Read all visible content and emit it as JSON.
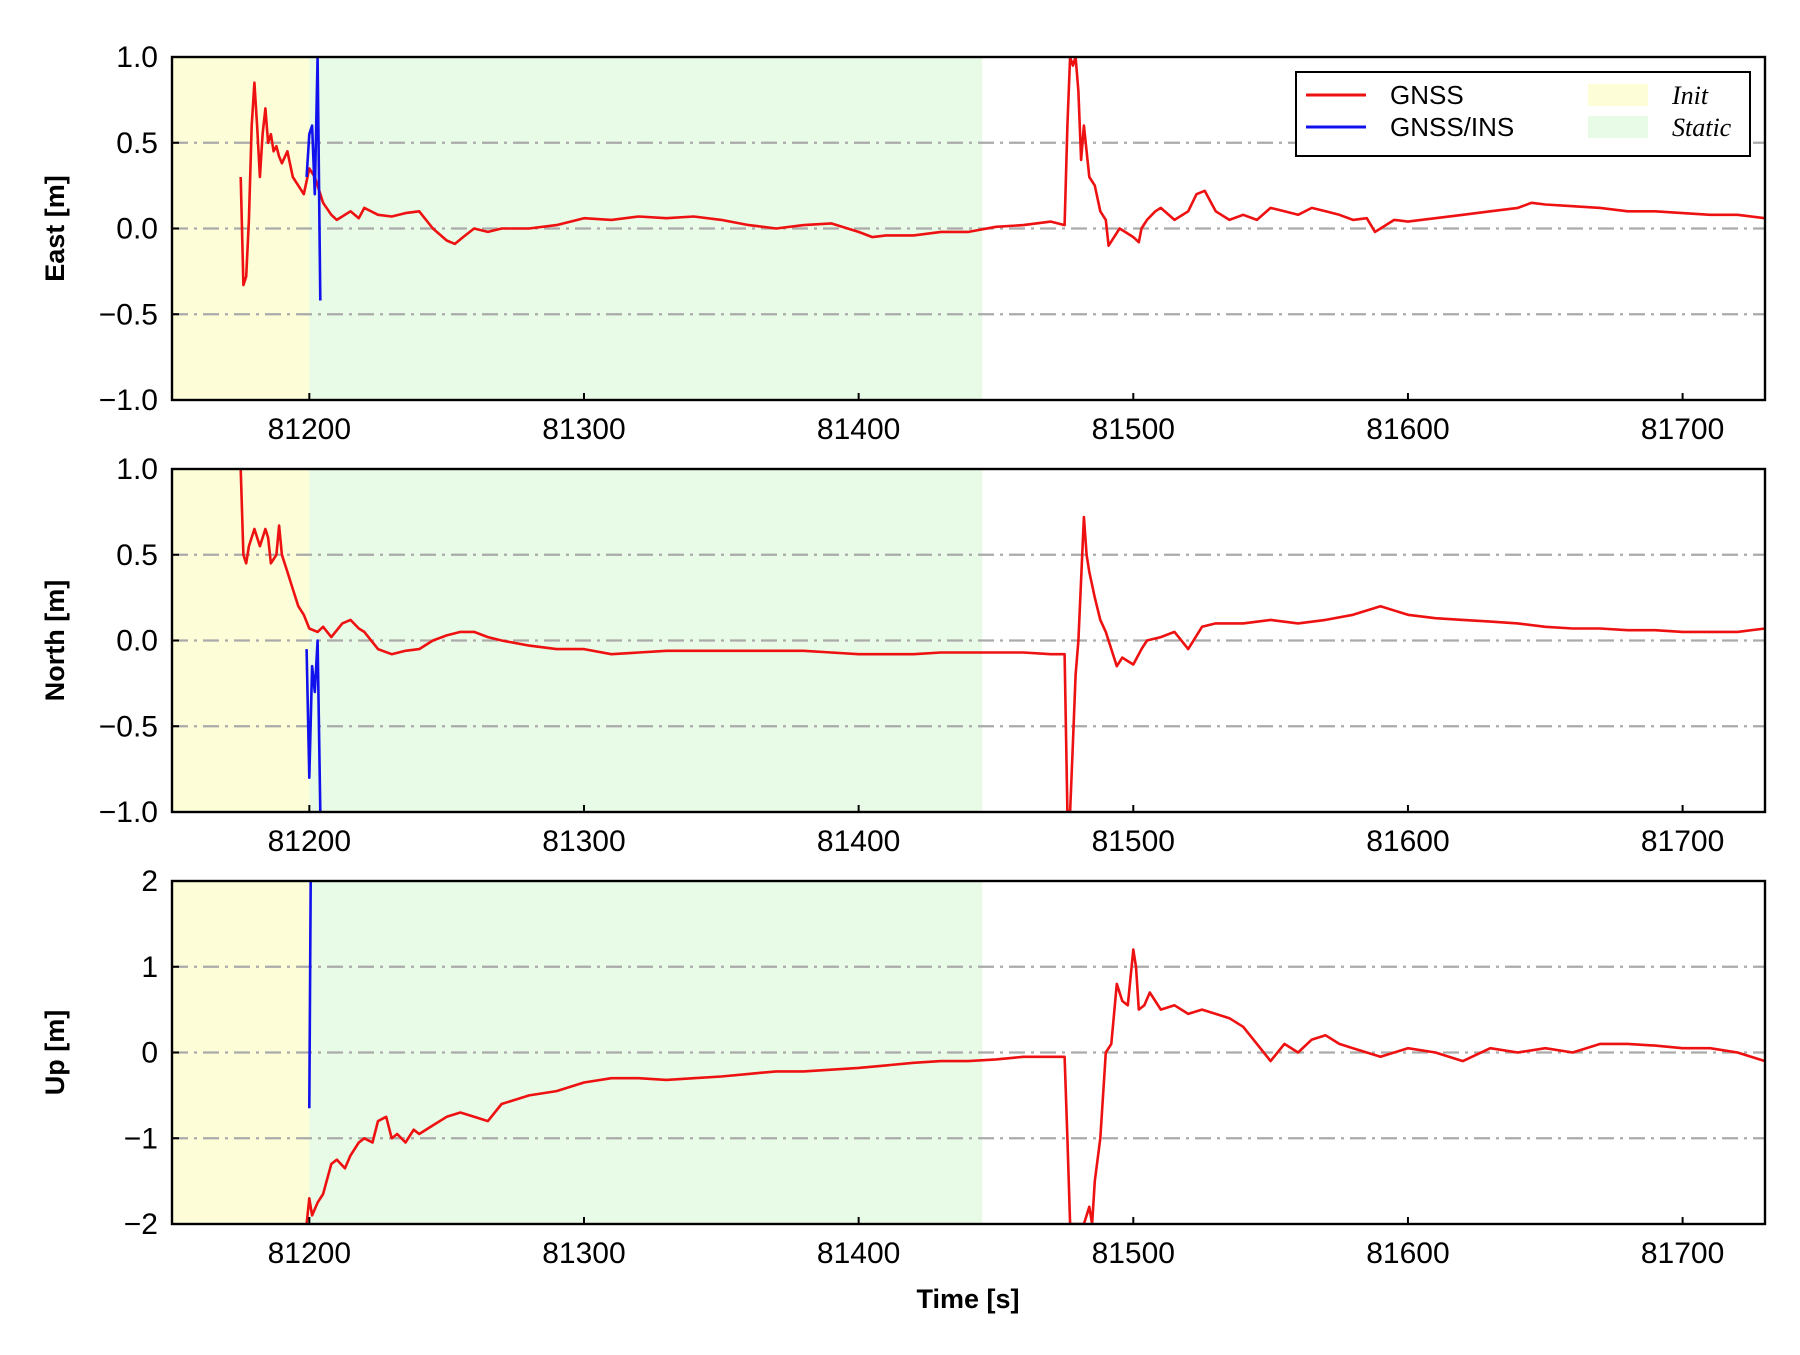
{
  "chart_data": {
    "type": "line",
    "xlabel": "Time [s]",
    "xlim": [
      81150,
      81730
    ],
    "xticks": [
      81200,
      81300,
      81400,
      81500,
      81600,
      81700
    ],
    "xtick_labels": [
      "81200",
      "81300",
      "81400",
      "81500",
      "81600",
      "81700"
    ],
    "shaded_regions": [
      {
        "name": "Init",
        "x_range": [
          81150,
          81200
        ],
        "color": "#fdfdd8"
      },
      {
        "name": "Static",
        "x_range": [
          81200,
          81445
        ],
        "color": "#e8fbe6"
      }
    ],
    "legend": {
      "placement": "top-right",
      "entries": [
        {
          "label": "GNSS",
          "type": "line",
          "color": "#ee1111"
        },
        {
          "label": "GNSS/INS",
          "type": "line",
          "color": "#1111ee"
        },
        {
          "label": "Init",
          "type": "patch",
          "color": "#fdfdd8"
        },
        {
          "label": "Static",
          "type": "patch",
          "color": "#e8fbe6"
        }
      ]
    },
    "grid": "horizontal dash-dot",
    "panels": [
      {
        "ylabel": "East [m]",
        "ylim": [
          -1.0,
          1.0
        ],
        "yticks": [
          -1.0,
          -0.5,
          0.0,
          0.5,
          1.0
        ],
        "ytick_labels": [
          "−1.0",
          "−0.5",
          "0.0",
          "0.5",
          "1.0"
        ],
        "series": [
          {
            "name": "GNSS",
            "color": "#ee1111",
            "x": [
              81175,
              81176,
              81177,
              81178,
              81179,
              81180,
              81181,
              81182,
              81183,
              81184,
              81185,
              81186,
              81187,
              81188,
              81189,
              81190,
              81192,
              81194,
              81196,
              81198,
              81200,
              81202,
              81205,
              81208,
              81210,
              81215,
              81218,
              81220,
              81225,
              81230,
              81235,
              81240,
              81245,
              81250,
              81253,
              81256,
              81260,
              81265,
              81270,
              81280,
              81290,
              81300,
              81310,
              81320,
              81330,
              81340,
              81350,
              81360,
              81370,
              81380,
              81390,
              81400,
              81405,
              81410,
              81420,
              81430,
              81440,
              81450,
              81460,
              81470,
              81475,
              81476,
              81477,
              81478,
              81479,
              81480,
              81481,
              81482,
              81484,
              81486,
              81488,
              81490,
              81491,
              81493,
              81495,
              81497,
              81500,
              81502,
              81503,
              81505,
              81508,
              81510,
              81515,
              81520,
              81523,
              81526,
              81530,
              81535,
              81540,
              81545,
              81550,
              81555,
              81560,
              81565,
              81570,
              81575,
              81580,
              81585,
              81588,
              81590,
              81595,
              81600,
              81610,
              81620,
              81630,
              81640,
              81645,
              81650,
              81660,
              81670,
              81680,
              81690,
              81700,
              81710,
              81720,
              81730
            ],
            "y": [
              0.3,
              -0.33,
              -0.28,
              0.05,
              0.6,
              0.85,
              0.6,
              0.3,
              0.55,
              0.7,
              0.5,
              0.55,
              0.45,
              0.48,
              0.42,
              0.38,
              0.45,
              0.3,
              0.25,
              0.2,
              0.35,
              0.3,
              0.15,
              0.08,
              0.05,
              0.1,
              0.06,
              0.12,
              0.08,
              0.07,
              0.09,
              0.1,
              0.0,
              -0.07,
              -0.09,
              -0.05,
              0.0,
              -0.02,
              0.0,
              0.0,
              0.02,
              0.06,
              0.05,
              0.07,
              0.06,
              0.07,
              0.05,
              0.02,
              0.0,
              0.02,
              0.03,
              -0.02,
              -0.05,
              -0.04,
              -0.04,
              -0.02,
              -0.02,
              0.01,
              0.02,
              0.04,
              0.02,
              0.6,
              1.0,
              0.95,
              1.0,
              0.8,
              0.4,
              0.6,
              0.3,
              0.25,
              0.1,
              0.05,
              -0.1,
              -0.05,
              0.0,
              -0.02,
              -0.05,
              -0.08,
              0.0,
              0.05,
              0.1,
              0.12,
              0.05,
              0.1,
              0.2,
              0.22,
              0.1,
              0.05,
              0.08,
              0.05,
              0.12,
              0.1,
              0.08,
              0.12,
              0.1,
              0.08,
              0.05,
              0.06,
              -0.02,
              0.0,
              0.05,
              0.04,
              0.06,
              0.08,
              0.1,
              0.12,
              0.15,
              0.14,
              0.13,
              0.12,
              0.1,
              0.1,
              0.09,
              0.08,
              0.08,
              0.06
            ]
          },
          {
            "name": "GNSS/INS",
            "color": "#1111ee",
            "x": [
              81199,
              81200,
              81201,
              81202,
              81203,
              81204
            ],
            "y": [
              0.3,
              0.55,
              0.6,
              0.2,
              1.0,
              -0.42
            ]
          }
        ]
      },
      {
        "ylabel": "North [m]",
        "ylim": [
          -1.0,
          1.0
        ],
        "yticks": [
          -1.0,
          -0.5,
          0.0,
          0.5,
          1.0
        ],
        "ytick_labels": [
          "−1.0",
          "−0.5",
          "0.0",
          "0.5",
          "1.0"
        ],
        "series": [
          {
            "name": "GNSS",
            "color": "#ee1111",
            "x": [
              81175,
              81176,
              81177,
              81178,
              81180,
              81182,
              81184,
              81185,
              81186,
              81188,
              81189,
              81190,
              81192,
              81194,
              81196,
              81198,
              81200,
              81203,
              81205,
              81208,
              81212,
              81215,
              81218,
              81220,
              81225,
              81230,
              81235,
              81240,
              81245,
              81250,
              81255,
              81260,
              81265,
              81270,
              81280,
              81290,
              81300,
              81310,
              81320,
              81330,
              81340,
              81350,
              81360,
              81370,
              81380,
              81390,
              81400,
              81410,
              81420,
              81430,
              81440,
              81450,
              81460,
              81470,
              81475,
              81476,
              81477,
              81478,
              81479,
              81480,
              81482,
              81483,
              81484,
              81486,
              81488,
              81490,
              81492,
              81494,
              81496,
              81498,
              81500,
              81503,
              81505,
              81510,
              81515,
              81520,
              81525,
              81530,
              81540,
              81550,
              81560,
              81570,
              81580,
              81590,
              81600,
              81610,
              81620,
              81630,
              81640,
              81650,
              81660,
              81670,
              81680,
              81690,
              81700,
              81710,
              81720,
              81730
            ],
            "y": [
              1.0,
              0.5,
              0.45,
              0.55,
              0.65,
              0.55,
              0.65,
              0.6,
              0.45,
              0.5,
              0.67,
              0.5,
              0.4,
              0.3,
              0.2,
              0.15,
              0.07,
              0.05,
              0.08,
              0.02,
              0.1,
              0.12,
              0.07,
              0.05,
              -0.05,
              -0.08,
              -0.06,
              -0.05,
              0.0,
              0.03,
              0.05,
              0.05,
              0.02,
              0.0,
              -0.03,
              -0.05,
              -0.05,
              -0.08,
              -0.07,
              -0.06,
              -0.06,
              -0.06,
              -0.06,
              -0.06,
              -0.06,
              -0.07,
              -0.08,
              -0.08,
              -0.08,
              -0.07,
              -0.07,
              -0.07,
              -0.07,
              -0.08,
              -0.08,
              -1.0,
              -1.0,
              -0.6,
              -0.2,
              0.0,
              0.72,
              0.5,
              0.4,
              0.25,
              0.12,
              0.05,
              -0.05,
              -0.15,
              -0.1,
              -0.12,
              -0.14,
              -0.05,
              0.0,
              0.02,
              0.05,
              -0.05,
              0.08,
              0.1,
              0.1,
              0.12,
              0.1,
              0.12,
              0.15,
              0.2,
              0.15,
              0.13,
              0.12,
              0.11,
              0.1,
              0.08,
              0.07,
              0.07,
              0.06,
              0.06,
              0.05,
              0.05,
              0.05,
              0.07
            ]
          },
          {
            "name": "GNSS/INS",
            "color": "#1111ee",
            "x": [
              81199,
              81200,
              81201,
              81202,
              81203,
              81204
            ],
            "y": [
              -0.05,
              -0.8,
              -0.15,
              -0.3,
              0.0,
              -1.0
            ]
          }
        ]
      },
      {
        "ylabel": "Up [m]",
        "ylim": [
          -2,
          2
        ],
        "yticks": [
          -2,
          -1,
          0,
          1,
          2
        ],
        "ytick_labels": [
          "−2",
          "−1",
          "0",
          "1",
          "2"
        ],
        "series": [
          {
            "name": "GNSS",
            "color": "#ee1111",
            "x": [
              81199,
              81200,
              81201,
              81203,
              81205,
              81208,
              81210,
              81213,
              81215,
              81218,
              81220,
              81223,
              81225,
              81228,
              81230,
              81232,
              81235,
              81238,
              81240,
              81245,
              81250,
              81255,
              81260,
              81265,
              81270,
              81275,
              81280,
              81290,
              81300,
              81310,
              81320,
              81330,
              81340,
              81350,
              81360,
              81370,
              81380,
              81390,
              81400,
              81410,
              81420,
              81430,
              81440,
              81450,
              81460,
              81470,
              81475,
              81476,
              81477,
              81478,
              81480,
              81482,
              81484,
              81485,
              81486,
              81488,
              81490,
              81492,
              81494,
              81496,
              81498,
              81500,
              81501,
              81502,
              81504,
              81506,
              81508,
              81510,
              81515,
              81520,
              81525,
              81530,
              81535,
              81540,
              81545,
              81550,
              81555,
              81560,
              81565,
              81570,
              81575,
              81580,
              81590,
              81600,
              81610,
              81620,
              81630,
              81640,
              81650,
              81660,
              81670,
              81680,
              81690,
              81700,
              81710,
              81720,
              81730
            ],
            "y": [
              -2.0,
              -1.7,
              -1.9,
              -1.75,
              -1.65,
              -1.3,
              -1.25,
              -1.35,
              -1.2,
              -1.05,
              -1.0,
              -1.05,
              -0.8,
              -0.75,
              -1.0,
              -0.95,
              -1.05,
              -0.9,
              -0.95,
              -0.85,
              -0.75,
              -0.7,
              -0.75,
              -0.8,
              -0.6,
              -0.55,
              -0.5,
              -0.45,
              -0.35,
              -0.3,
              -0.3,
              -0.32,
              -0.3,
              -0.28,
              -0.25,
              -0.22,
              -0.22,
              -0.2,
              -0.18,
              -0.15,
              -0.12,
              -0.1,
              -0.1,
              -0.08,
              -0.05,
              -0.05,
              -0.05,
              -1.0,
              -2.0,
              -2.0,
              -2.0,
              -2.0,
              -1.8,
              -2.0,
              -1.5,
              -1.0,
              0.0,
              0.1,
              0.8,
              0.6,
              0.55,
              1.2,
              1.0,
              0.5,
              0.55,
              0.7,
              0.6,
              0.5,
              0.55,
              0.45,
              0.5,
              0.45,
              0.4,
              0.3,
              0.1,
              -0.1,
              0.1,
              0.0,
              0.15,
              0.2,
              0.1,
              0.05,
              -0.05,
              0.05,
              0.0,
              -0.1,
              0.05,
              0.0,
              0.05,
              0.0,
              0.1,
              0.1,
              0.08,
              0.05,
              0.05,
              0.0,
              -0.1
            ]
          },
          {
            "name": "GNSS/INS",
            "color": "#1111ee",
            "x": [
              81200,
              81200.5
            ],
            "y": [
              -0.65,
              2.0
            ]
          }
        ]
      }
    ]
  }
}
